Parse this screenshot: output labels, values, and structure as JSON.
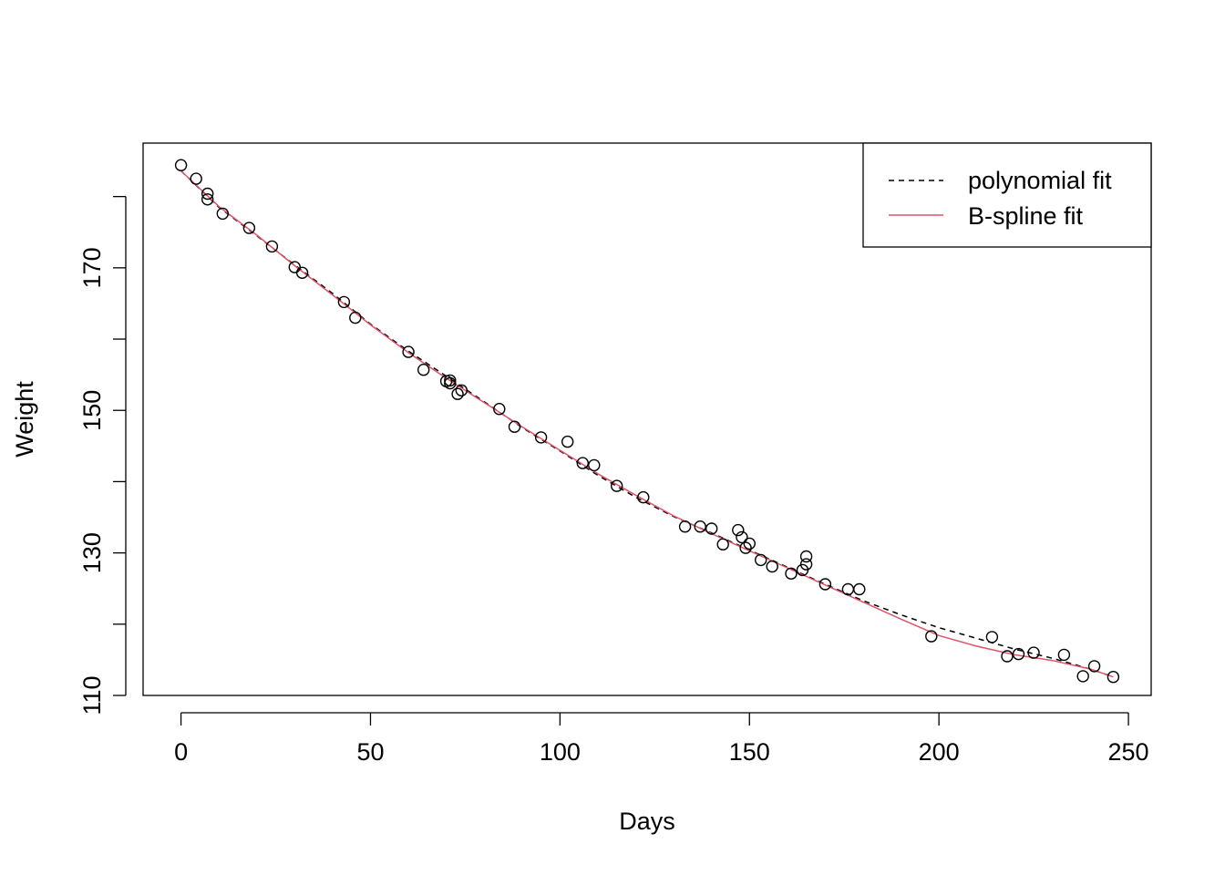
{
  "chart_data": {
    "type": "scatter",
    "xlabel": "Days",
    "ylabel": "Weight",
    "xlim": [
      -10,
      256
    ],
    "ylim": [
      110,
      187.5
    ],
    "x_ticks": [
      0,
      50,
      100,
      150,
      200,
      250
    ],
    "y_ticks": [
      110,
      120,
      130,
      140,
      150,
      160,
      170,
      180
    ],
    "y_tick_labels": [
      "110",
      "",
      "130",
      "",
      "150",
      "",
      "170",
      ""
    ],
    "grid": false,
    "legend_position": "top-right",
    "series": [
      {
        "kind": "points",
        "x": [
          0,
          4,
          7,
          7,
          11,
          18,
          24,
          30,
          32,
          43,
          46,
          60,
          64,
          70,
          71,
          71,
          73,
          74,
          84,
          88,
          95,
          102,
          106,
          109,
          115,
          122,
          133,
          137,
          140,
          143,
          147,
          148,
          149,
          150,
          153,
          156,
          161,
          164,
          165,
          165,
          170,
          176,
          179,
          198,
          214,
          218,
          221,
          225,
          233,
          238,
          241,
          246
        ],
        "y": [
          184.4,
          182.5,
          180.4,
          179.6,
          177.6,
          175.6,
          173.0,
          170.1,
          169.3,
          165.2,
          163.0,
          158.2,
          155.7,
          154.1,
          154.2,
          153.8,
          152.3,
          152.8,
          150.2,
          147.7,
          146.2,
          145.6,
          142.6,
          142.3,
          139.4,
          137.8,
          133.7,
          133.7,
          133.4,
          131.2,
          133.2,
          132.2,
          130.7,
          131.3,
          129.0,
          128.1,
          127.1,
          127.6,
          128.4,
          129.5,
          125.6,
          124.9,
          124.9,
          118.3,
          118.2,
          115.5,
          115.8,
          116.0,
          115.7,
          112.7,
          114.1,
          112.6
        ],
        "marker": "open-circle"
      },
      {
        "name": "polynomial fit",
        "kind": "line",
        "style": "dashed",
        "color": "#000000",
        "x": [
          0,
          10,
          20,
          30,
          40,
          50,
          60,
          70,
          80,
          90,
          100,
          110,
          120,
          130,
          140,
          150,
          160,
          170,
          180,
          190,
          200,
          210,
          220,
          230,
          240,
          246
        ],
        "y": [
          183.6,
          178.5,
          174.5,
          170.4,
          166.4,
          162.1,
          158.3,
          154.8,
          151.2,
          147.6,
          144.3,
          140.9,
          137.8,
          135.1,
          132.8,
          130.4,
          128.0,
          125.6,
          123.3,
          121.3,
          119.5,
          118.0,
          116.5,
          115.2,
          113.7,
          112.6
        ]
      },
      {
        "name": "B-spline fit",
        "kind": "line",
        "style": "solid",
        "color": "#DF536B",
        "x": [
          0,
          10,
          20,
          30,
          40,
          50,
          60,
          70,
          80,
          90,
          100,
          110,
          120,
          130,
          140,
          150,
          160,
          170,
          180,
          190,
          200,
          210,
          220,
          230,
          240,
          246
        ],
        "y": [
          183.6,
          178.6,
          174.6,
          170.3,
          166.2,
          162.0,
          158.1,
          154.5,
          151.1,
          147.7,
          144.4,
          141.1,
          138.1,
          135.2,
          132.7,
          130.3,
          127.9,
          125.5,
          123.1,
          120.7,
          118.4,
          116.9,
          115.7,
          114.9,
          113.7,
          112.6
        ]
      }
    ]
  }
}
